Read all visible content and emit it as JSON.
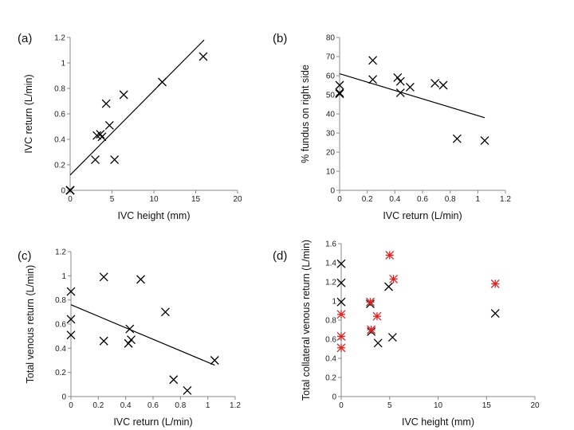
{
  "chart_data": [
    {
      "type": "scatter",
      "panel_label": "(a)",
      "xlabel": "IVC height (mm)",
      "ylabel": "IVC return (L/min)",
      "xlim": [
        0,
        20
      ],
      "ylim": [
        0,
        1.2
      ],
      "xticks": [
        0,
        5,
        10,
        15,
        20
      ],
      "xtick_labels": [
        "0",
        "5",
        "10",
        "15",
        "20"
      ],
      "yticks": [
        0,
        0.2,
        0.4,
        0.6,
        0.8,
        1,
        1.2
      ],
      "ytick_labels": [
        "0",
        "0.2",
        "0.4",
        "0.6",
        "0.8",
        "1",
        "1.2"
      ],
      "series": [
        {
          "name": "data",
          "marker": "x",
          "color": "#000000",
          "points": [
            [
              0,
              0
            ],
            [
              0,
              0
            ],
            [
              0,
              0
            ],
            [
              3.0,
              0.24
            ],
            [
              3.2,
              0.43
            ],
            [
              3.6,
              0.44
            ],
            [
              3.8,
              0.42
            ],
            [
              4.3,
              0.68
            ],
            [
              4.7,
              0.51
            ],
            [
              5.3,
              0.24
            ],
            [
              6.4,
              0.75
            ],
            [
              11.0,
              0.85
            ],
            [
              15.9,
              1.05
            ]
          ]
        }
      ],
      "trendline": {
        "x": [
          0,
          16.0
        ],
        "y": [
          0.12,
          1.18
        ]
      }
    },
    {
      "type": "scatter",
      "panel_label": "(b)",
      "xlabel": "IVC return (L/min)",
      "ylabel": "% fundus on right side",
      "xlim": [
        0,
        1.2
      ],
      "ylim": [
        0,
        80
      ],
      "xticks": [
        0,
        0.2,
        0.4,
        0.6,
        0.8,
        1,
        1.2
      ],
      "xtick_labels": [
        "0",
        "0.2",
        "0.4",
        "0.6",
        "0.8",
        "1",
        "1.2"
      ],
      "yticks": [
        0,
        10,
        20,
        30,
        40,
        50,
        60,
        70,
        80
      ],
      "ytick_labels": [
        "0",
        "10",
        "20",
        "30",
        "40",
        "50",
        "60",
        "70",
        "80"
      ],
      "series": [
        {
          "name": "data",
          "marker": "x",
          "color": "#000000",
          "points": [
            [
              0,
              55
            ],
            [
              0,
              51
            ],
            [
              0,
              50.5
            ],
            [
              0.24,
              68
            ],
            [
              0.24,
              58
            ],
            [
              0.42,
              59
            ],
            [
              0.44,
              57
            ],
            [
              0.44,
              51
            ],
            [
              0.51,
              54
            ],
            [
              0.69,
              56
            ],
            [
              0.75,
              55
            ],
            [
              0.85,
              27
            ],
            [
              1.05,
              26
            ]
          ]
        }
      ],
      "trendline": {
        "x": [
          0,
          1.05
        ],
        "y": [
          61,
          38
        ]
      }
    },
    {
      "type": "scatter",
      "panel_label": "(c)",
      "xlabel": "IVC return (L/min)",
      "ylabel": "Total venous return (L/min)",
      "xlim": [
        0,
        1.2
      ],
      "ylim": [
        0,
        1.2
      ],
      "xticks": [
        0,
        0.2,
        0.4,
        0.6,
        0.8,
        1,
        1.2
      ],
      "xtick_labels": [
        "0",
        "0.2",
        "0.4",
        "0.6",
        "0.8",
        "1",
        "1.2"
      ],
      "yticks": [
        0,
        0.2,
        0.4,
        0.6,
        0.8,
        1,
        1.2
      ],
      "ytick_labels": [
        "0",
        "0.2",
        "0.4",
        "0.6",
        "0.8",
        "1",
        "1.2"
      ],
      "series": [
        {
          "name": "data",
          "marker": "x",
          "color": "#000000",
          "points": [
            [
              0,
              0.87
            ],
            [
              0,
              0.64
            ],
            [
              0,
              0.51
            ],
            [
              0.24,
              0.99
            ],
            [
              0.24,
              0.46
            ],
            [
              0.42,
              0.44
            ],
            [
              0.43,
              0.56
            ],
            [
              0.44,
              0.47
            ],
            [
              0.51,
              0.97
            ],
            [
              0.69,
              0.7
            ],
            [
              0.75,
              0.14
            ],
            [
              0.85,
              0.05
            ],
            [
              1.05,
              0.3
            ]
          ]
        }
      ],
      "trendline": {
        "x": [
          0,
          1.05
        ],
        "y": [
          0.76,
          0.26
        ]
      }
    },
    {
      "type": "scatter",
      "panel_label": "(d)",
      "xlabel": "IVC height (mm)",
      "ylabel": "Total collateral venous return (L/min)",
      "xlim": [
        0,
        20
      ],
      "ylim": [
        0,
        1.6
      ],
      "xticks": [
        0,
        5,
        10,
        15,
        20
      ],
      "xtick_labels": [
        "0",
        "5",
        "10",
        "15",
        "20"
      ],
      "yticks": [
        0,
        0.2,
        0.4,
        0.6,
        0.8,
        1,
        1.2,
        1.4,
        1.6
      ],
      "ytick_labels": [
        "0",
        "0.2",
        "0.4",
        "0.6",
        "0.8",
        "1",
        "1.2",
        "1.4",
        "1.6"
      ],
      "series": [
        {
          "name": "black",
          "marker": "x",
          "color": "#000000",
          "points": [
            [
              0,
              1.39
            ],
            [
              0,
              1.19
            ],
            [
              0,
              0.99
            ],
            [
              3.0,
              0.97
            ],
            [
              3.1,
              0.68
            ],
            [
              3.8,
              0.56
            ],
            [
              4.9,
              1.15
            ],
            [
              5.3,
              0.62
            ],
            [
              15.9,
              0.87
            ]
          ]
        },
        {
          "name": "red",
          "marker": "asterisk",
          "color": "#e02020",
          "points": [
            [
              0,
              0.86
            ],
            [
              0,
              0.63
            ],
            [
              0,
              0.51
            ],
            [
              3.0,
              0.99
            ],
            [
              3.1,
              0.7
            ],
            [
              3.7,
              0.84
            ],
            [
              5.0,
              1.48
            ],
            [
              5.4,
              1.23
            ],
            [
              15.9,
              1.18
            ]
          ]
        }
      ]
    }
  ]
}
